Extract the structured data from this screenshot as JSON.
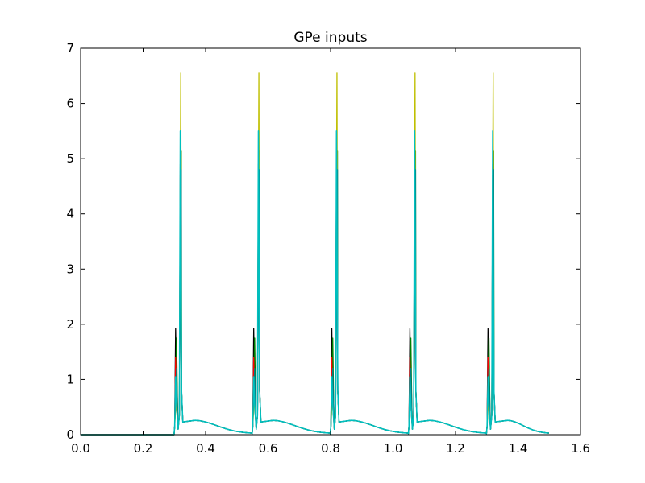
{
  "chart_data": {
    "type": "line",
    "title": "GPe inputs",
    "xlabel": "",
    "ylabel": "",
    "xlim": [
      0.0,
      1.6
    ],
    "ylim": [
      0,
      7
    ],
    "xticks": [
      "0.0",
      "0.2",
      "0.4",
      "0.6",
      "0.8",
      "1.0",
      "1.2",
      "1.4",
      "1.6"
    ],
    "yticks": [
      "0",
      "1",
      "2",
      "3",
      "4",
      "5",
      "6",
      "7"
    ],
    "grid": false,
    "legend": "none",
    "x_end": 1.5,
    "burst_onsets": [
      0.3,
      0.55,
      0.8,
      1.05,
      1.3
    ],
    "series": [
      {
        "color": "#000000",
        "first_peak": 1.92,
        "second_peak": 4.9
      },
      {
        "color": "#0000ff",
        "first_peak": 1.1,
        "second_peak": 4.35
      },
      {
        "color": "#008000",
        "first_peak": 1.75,
        "second_peak": 5.15
      },
      {
        "color": "#ff0000",
        "first_peak": 1.4,
        "second_peak": 4.7
      },
      {
        "color": "#bfbf00",
        "first_peak": 0.6,
        "second_peak": 6.55
      },
      {
        "color": "#008080",
        "first_peak": 1.2,
        "second_peak": 4.8
      },
      {
        "color": "#00bfbf",
        "first_peak": 1.05,
        "second_peak": 5.5
      }
    ],
    "tail": {
      "plateau": 0.23,
      "bump": 0.26,
      "bump_offset": 0.04,
      "decay_end": 0.02
    }
  }
}
